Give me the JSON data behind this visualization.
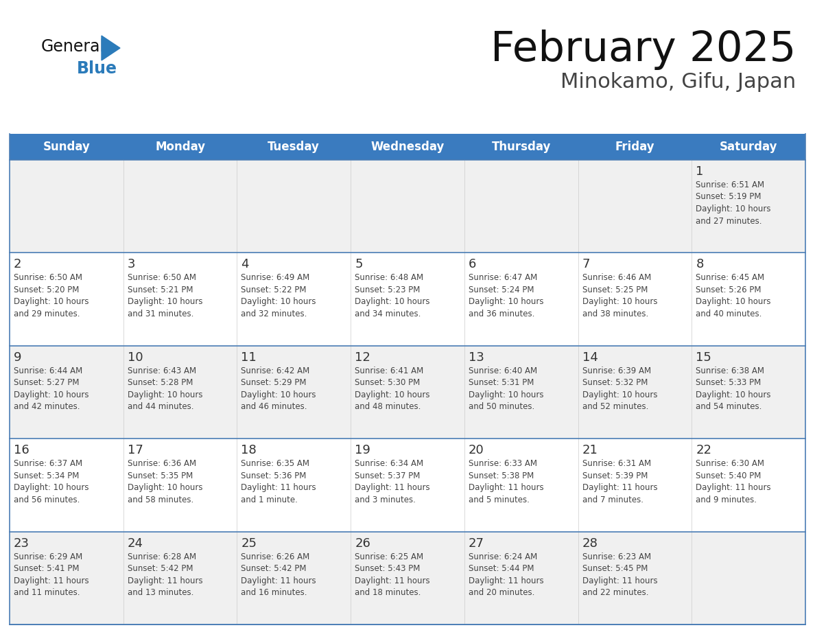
{
  "title": "February 2025",
  "subtitle": "Minokamo, Gifu, Japan",
  "days_of_week": [
    "Sunday",
    "Monday",
    "Tuesday",
    "Wednesday",
    "Thursday",
    "Friday",
    "Saturday"
  ],
  "header_bg": "#3a7bbf",
  "header_text": "#ffffff",
  "cell_bg_white": "#ffffff",
  "cell_bg_gray": "#f0f0f0",
  "cell_border_color": "#4a7db5",
  "day_num_color": "#333333",
  "info_text_color": "#444444",
  "title_color": "#111111",
  "subtitle_color": "#444444",
  "logo_general_color": "#111111",
  "logo_blue_color": "#2b7bba",
  "weeks": [
    [
      {
        "day": null,
        "info": null
      },
      {
        "day": null,
        "info": null
      },
      {
        "day": null,
        "info": null
      },
      {
        "day": null,
        "info": null
      },
      {
        "day": null,
        "info": null
      },
      {
        "day": null,
        "info": null
      },
      {
        "day": 1,
        "info": "Sunrise: 6:51 AM\nSunset: 5:19 PM\nDaylight: 10 hours\nand 27 minutes."
      }
    ],
    [
      {
        "day": 2,
        "info": "Sunrise: 6:50 AM\nSunset: 5:20 PM\nDaylight: 10 hours\nand 29 minutes."
      },
      {
        "day": 3,
        "info": "Sunrise: 6:50 AM\nSunset: 5:21 PM\nDaylight: 10 hours\nand 31 minutes."
      },
      {
        "day": 4,
        "info": "Sunrise: 6:49 AM\nSunset: 5:22 PM\nDaylight: 10 hours\nand 32 minutes."
      },
      {
        "day": 5,
        "info": "Sunrise: 6:48 AM\nSunset: 5:23 PM\nDaylight: 10 hours\nand 34 minutes."
      },
      {
        "day": 6,
        "info": "Sunrise: 6:47 AM\nSunset: 5:24 PM\nDaylight: 10 hours\nand 36 minutes."
      },
      {
        "day": 7,
        "info": "Sunrise: 6:46 AM\nSunset: 5:25 PM\nDaylight: 10 hours\nand 38 minutes."
      },
      {
        "day": 8,
        "info": "Sunrise: 6:45 AM\nSunset: 5:26 PM\nDaylight: 10 hours\nand 40 minutes."
      }
    ],
    [
      {
        "day": 9,
        "info": "Sunrise: 6:44 AM\nSunset: 5:27 PM\nDaylight: 10 hours\nand 42 minutes."
      },
      {
        "day": 10,
        "info": "Sunrise: 6:43 AM\nSunset: 5:28 PM\nDaylight: 10 hours\nand 44 minutes."
      },
      {
        "day": 11,
        "info": "Sunrise: 6:42 AM\nSunset: 5:29 PM\nDaylight: 10 hours\nand 46 minutes."
      },
      {
        "day": 12,
        "info": "Sunrise: 6:41 AM\nSunset: 5:30 PM\nDaylight: 10 hours\nand 48 minutes."
      },
      {
        "day": 13,
        "info": "Sunrise: 6:40 AM\nSunset: 5:31 PM\nDaylight: 10 hours\nand 50 minutes."
      },
      {
        "day": 14,
        "info": "Sunrise: 6:39 AM\nSunset: 5:32 PM\nDaylight: 10 hours\nand 52 minutes."
      },
      {
        "day": 15,
        "info": "Sunrise: 6:38 AM\nSunset: 5:33 PM\nDaylight: 10 hours\nand 54 minutes."
      }
    ],
    [
      {
        "day": 16,
        "info": "Sunrise: 6:37 AM\nSunset: 5:34 PM\nDaylight: 10 hours\nand 56 minutes."
      },
      {
        "day": 17,
        "info": "Sunrise: 6:36 AM\nSunset: 5:35 PM\nDaylight: 10 hours\nand 58 minutes."
      },
      {
        "day": 18,
        "info": "Sunrise: 6:35 AM\nSunset: 5:36 PM\nDaylight: 11 hours\nand 1 minute."
      },
      {
        "day": 19,
        "info": "Sunrise: 6:34 AM\nSunset: 5:37 PM\nDaylight: 11 hours\nand 3 minutes."
      },
      {
        "day": 20,
        "info": "Sunrise: 6:33 AM\nSunset: 5:38 PM\nDaylight: 11 hours\nand 5 minutes."
      },
      {
        "day": 21,
        "info": "Sunrise: 6:31 AM\nSunset: 5:39 PM\nDaylight: 11 hours\nand 7 minutes."
      },
      {
        "day": 22,
        "info": "Sunrise: 6:30 AM\nSunset: 5:40 PM\nDaylight: 11 hours\nand 9 minutes."
      }
    ],
    [
      {
        "day": 23,
        "info": "Sunrise: 6:29 AM\nSunset: 5:41 PM\nDaylight: 11 hours\nand 11 minutes."
      },
      {
        "day": 24,
        "info": "Sunrise: 6:28 AM\nSunset: 5:42 PM\nDaylight: 11 hours\nand 13 minutes."
      },
      {
        "day": 25,
        "info": "Sunrise: 6:26 AM\nSunset: 5:42 PM\nDaylight: 11 hours\nand 16 minutes."
      },
      {
        "day": 26,
        "info": "Sunrise: 6:25 AM\nSunset: 5:43 PM\nDaylight: 11 hours\nand 18 minutes."
      },
      {
        "day": 27,
        "info": "Sunrise: 6:24 AM\nSunset: 5:44 PM\nDaylight: 11 hours\nand 20 minutes."
      },
      {
        "day": 28,
        "info": "Sunrise: 6:23 AM\nSunset: 5:45 PM\nDaylight: 11 hours\nand 22 minutes."
      },
      {
        "day": null,
        "info": null
      }
    ]
  ]
}
